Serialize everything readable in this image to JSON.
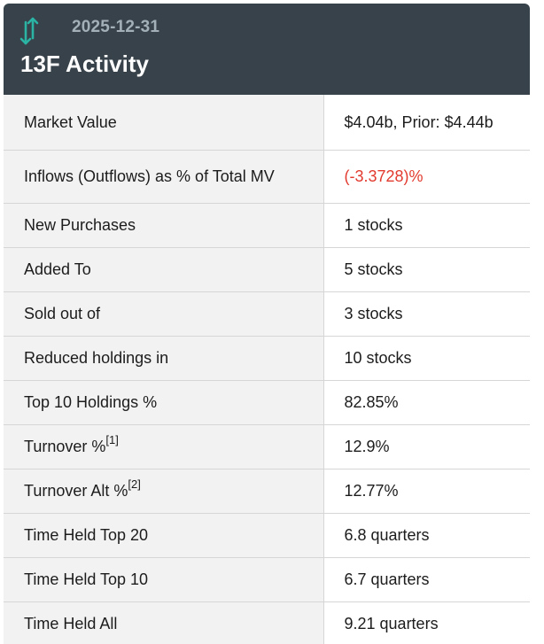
{
  "header": {
    "icon": "up-down-arrows-icon",
    "date": "2025-12-31",
    "title": "13F Activity"
  },
  "colors": {
    "header_bg": "#37424a",
    "label_bg": "#f2f2f2",
    "negative": "#e23a2e"
  },
  "rows": [
    {
      "label": "Market Value",
      "value": "$4.04b, Prior: $4.44b"
    },
    {
      "label": "Inflows (Outflows) as % of Total MV",
      "value": "(-3.3728)%"
    },
    {
      "label": "New Purchases",
      "value": "1 stocks"
    },
    {
      "label": "Added To",
      "value": "5 stocks"
    },
    {
      "label": "Sold out of",
      "value": "3 stocks"
    },
    {
      "label": "Reduced holdings in",
      "value": "10 stocks"
    },
    {
      "label": "Top 10 Holdings %",
      "value": "82.85%"
    },
    {
      "label": "Turnover %",
      "footnote": "[1]",
      "value": "12.9%"
    },
    {
      "label": "Turnover Alt %",
      "footnote": "[2]",
      "value": "12.77%"
    },
    {
      "label": "Time Held Top 20",
      "value": "6.8 quarters"
    },
    {
      "label": "Time Held Top 10",
      "value": "6.7 quarters"
    },
    {
      "label": "Time Held All",
      "value": "9.21 quarters"
    }
  ]
}
